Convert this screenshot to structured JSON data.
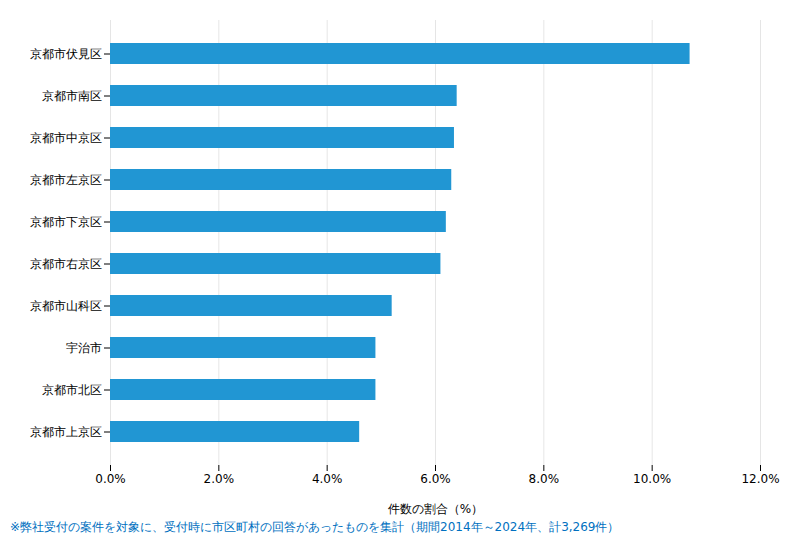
{
  "chart_data": {
    "type": "bar",
    "orientation": "horizontal",
    "categories": [
      "京都市上京区",
      "京都市北区",
      "宇治市",
      "京都市山科区",
      "京都市右京区",
      "京都市下京区",
      "京都市左京区",
      "京都市中京区",
      "京都市南区",
      "京都市伏見区"
    ],
    "values": [
      4.6,
      4.9,
      4.9,
      5.2,
      6.1,
      6.2,
      6.3,
      6.35,
      6.4,
      10.7
    ],
    "color": "#2196D3",
    "xlabel": "件数の割合（%）",
    "xlim": [
      0,
      12.0
    ],
    "xticks": [
      {
        "value": 0.0,
        "label": "0.0%"
      },
      {
        "value": 2.0,
        "label": "2.0%"
      },
      {
        "value": 4.0,
        "label": "4.0%"
      },
      {
        "value": 6.0,
        "label": "6.0%"
      },
      {
        "value": 8.0,
        "label": "8.0%"
      },
      {
        "value": 10.0,
        "label": "10.0%"
      },
      {
        "value": 12.0,
        "label": "12.0%"
      }
    ],
    "grid": true,
    "footnote": "※弊社受付の案件を対象に、受付時に市区町村の回答があったものを集計（期間2014年～2024年、計3,269件）",
    "footnote_color": "#0070C0"
  }
}
